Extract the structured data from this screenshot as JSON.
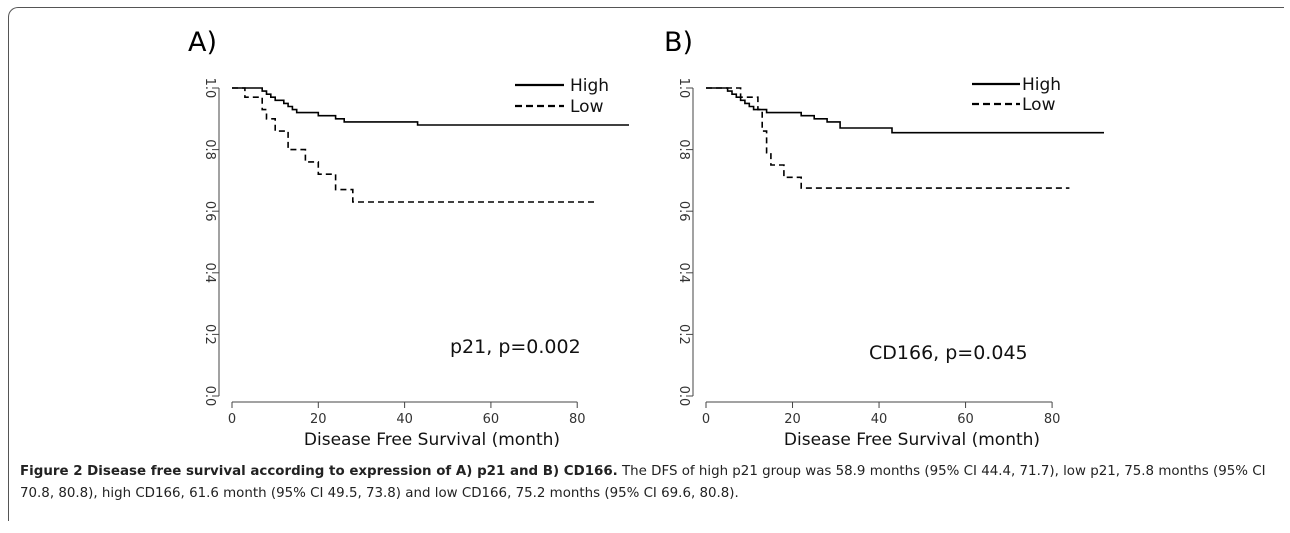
{
  "chart_data": [
    {
      "type": "line",
      "panel_label": "A)",
      "xlabel": "Disease Free Survival (month)",
      "ylabel": "",
      "xlim": [
        0,
        92
      ],
      "ylim": [
        0.0,
        1.0
      ],
      "xticks": [
        "0",
        "20",
        "40",
        "60",
        "80"
      ],
      "yticks": [
        "0.0",
        "0.2",
        "0.4",
        "0.6",
        "0.8",
        "1.0"
      ],
      "legend": {
        "position": "top-right"
      },
      "annotation": "p21,  p=0.002",
      "series": [
        {
          "name": "High",
          "style": "solid",
          "points": [
            [
              0,
              1.0
            ],
            [
              7,
              1.0
            ],
            [
              7,
              0.99
            ],
            [
              8,
              0.99
            ],
            [
              8,
              0.98
            ],
            [
              9,
              0.98
            ],
            [
              9,
              0.97
            ],
            [
              10,
              0.97
            ],
            [
              10,
              0.96
            ],
            [
              12,
              0.96
            ],
            [
              12,
              0.95
            ],
            [
              13,
              0.95
            ],
            [
              13,
              0.94
            ],
            [
              14,
              0.94
            ],
            [
              14,
              0.93
            ],
            [
              15,
              0.93
            ],
            [
              15,
              0.92
            ],
            [
              20,
              0.92
            ],
            [
              20,
              0.91
            ],
            [
              24,
              0.91
            ],
            [
              24,
              0.9
            ],
            [
              26,
              0.9
            ],
            [
              26,
              0.89
            ],
            [
              43,
              0.89
            ],
            [
              43,
              0.88
            ],
            [
              92,
              0.88
            ]
          ]
        },
        {
          "name": "Low",
          "style": "dashed",
          "points": [
            [
              0,
              1.0
            ],
            [
              3,
              1.0
            ],
            [
              3,
              0.97
            ],
            [
              7,
              0.97
            ],
            [
              7,
              0.93
            ],
            [
              8,
              0.93
            ],
            [
              8,
              0.9
            ],
            [
              10,
              0.9
            ],
            [
              10,
              0.86
            ],
            [
              13,
              0.86
            ],
            [
              13,
              0.8
            ],
            [
              17,
              0.8
            ],
            [
              17,
              0.76
            ],
            [
              20,
              0.76
            ],
            [
              20,
              0.72
            ],
            [
              24,
              0.72
            ],
            [
              24,
              0.67
            ],
            [
              28,
              0.67
            ],
            [
              28,
              0.63
            ],
            [
              84,
              0.63
            ]
          ]
        }
      ]
    },
    {
      "type": "line",
      "panel_label": "B)",
      "xlabel": "Disease Free Survival (month)",
      "ylabel": "",
      "xlim": [
        0,
        92
      ],
      "ylim": [
        0.0,
        1.0
      ],
      "xticks": [
        "0",
        "20",
        "40",
        "60",
        "80"
      ],
      "yticks": [
        "0.0",
        "0.2",
        "0.4",
        "0.6",
        "0.8",
        "1.0"
      ],
      "legend": {
        "position": "top-right"
      },
      "annotation": "CD166,  p=0.045",
      "series": [
        {
          "name": "High",
          "style": "solid",
          "points": [
            [
              0,
              1.0
            ],
            [
              5,
              1.0
            ],
            [
              5,
              0.99
            ],
            [
              6,
              0.99
            ],
            [
              6,
              0.98
            ],
            [
              7,
              0.98
            ],
            [
              7,
              0.97
            ],
            [
              8,
              0.97
            ],
            [
              8,
              0.96
            ],
            [
              9,
              0.96
            ],
            [
              9,
              0.95
            ],
            [
              10,
              0.95
            ],
            [
              10,
              0.94
            ],
            [
              11,
              0.94
            ],
            [
              11,
              0.93
            ],
            [
              14,
              0.93
            ],
            [
              14,
              0.92
            ],
            [
              22,
              0.92
            ],
            [
              22,
              0.91
            ],
            [
              25,
              0.91
            ],
            [
              25,
              0.9
            ],
            [
              28,
              0.9
            ],
            [
              28,
              0.89
            ],
            [
              31,
              0.89
            ],
            [
              31,
              0.87
            ],
            [
              43,
              0.87
            ],
            [
              43,
              0.855
            ],
            [
              92,
              0.855
            ]
          ]
        },
        {
          "name": "Low",
          "style": "dashed",
          "points": [
            [
              0,
              1.0
            ],
            [
              8,
              1.0
            ],
            [
              8,
              0.97
            ],
            [
              12,
              0.97
            ],
            [
              12,
              0.93
            ],
            [
              13,
              0.93
            ],
            [
              13,
              0.86
            ],
            [
              14,
              0.86
            ],
            [
              14,
              0.79
            ],
            [
              15,
              0.79
            ],
            [
              15,
              0.75
            ],
            [
              18,
              0.75
            ],
            [
              18,
              0.71
            ],
            [
              22,
              0.71
            ],
            [
              22,
              0.675
            ],
            [
              84,
              0.675
            ]
          ]
        }
      ]
    }
  ],
  "caption": {
    "title": "Figure 2 Disease free survival according to expression of A) p21 and B) CD166.",
    "body": "The DFS of high p21 group was 58.9 months (95% CI 44.4, 71.7), low p21, 75.8 months (95% CI 70.8, 80.8), high CD166, 61.6 month (95% CI 49.5, 73.8) and low CD166, 75.2 months (95% CI 69.6, 80.8)."
  }
}
